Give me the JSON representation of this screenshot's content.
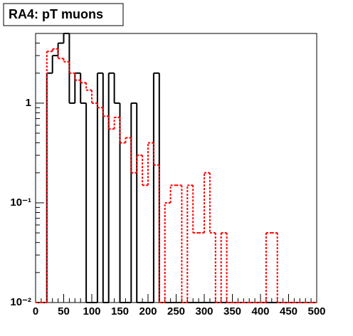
{
  "chart_data": {
    "type": "histogram",
    "title": "RA4: pT muons",
    "bins": [
      0,
      10,
      20,
      30,
      40,
      50,
      60,
      70,
      80,
      90,
      100,
      110,
      120,
      130,
      140,
      150,
      160,
      170,
      180,
      190,
      200,
      210,
      220,
      230,
      240,
      250,
      260,
      270,
      280,
      290,
      300,
      310,
      320,
      330,
      340,
      350,
      360,
      370,
      380,
      390,
      400,
      410,
      420,
      430,
      440,
      450,
      460,
      470,
      480,
      490,
      500
    ],
    "series": [
      {
        "color": "#000000",
        "line_style": "solid",
        "values": [
          0,
          0,
          2,
          3,
          4,
          5,
          1,
          2,
          1,
          0,
          0,
          2,
          0,
          2,
          1,
          0,
          0,
          1,
          0,
          0,
          0,
          2,
          0,
          0,
          0,
          0,
          0,
          0,
          0,
          0,
          0,
          0,
          0,
          0,
          0,
          0,
          0,
          0,
          0,
          0,
          0,
          0,
          0,
          0,
          0,
          0,
          0,
          0,
          0,
          0
        ]
      },
      {
        "color": "#ff0000",
        "line_style": "dotted",
        "values": [
          0,
          0,
          3.3,
          3.5,
          2.8,
          2.6,
          2.0,
          1.7,
          1.6,
          1.35,
          1.0,
          0.9,
          0.74,
          0.55,
          0.72,
          0.4,
          0.45,
          0.2,
          0.3,
          0.15,
          0.4,
          0.24,
          0,
          0.1,
          0.15,
          0.15,
          0,
          0.15,
          0.05,
          0.05,
          0.2,
          0.05,
          0,
          0.05,
          0,
          0,
          0,
          0,
          0,
          0,
          0,
          0.05,
          0.05,
          0,
          0,
          0,
          0,
          0,
          0,
          0
        ]
      }
    ],
    "xlim": [
      0,
      500
    ],
    "xticks": [
      0,
      50,
      100,
      150,
      200,
      250,
      300,
      350,
      400,
      450,
      500
    ],
    "ylim": [
      0.01,
      5
    ],
    "ylog": true,
    "yticks": [
      {
        "value": 0.01,
        "label": "10⁻²"
      },
      {
        "value": 0.1,
        "label": "10⁻¹"
      },
      1
    ]
  }
}
